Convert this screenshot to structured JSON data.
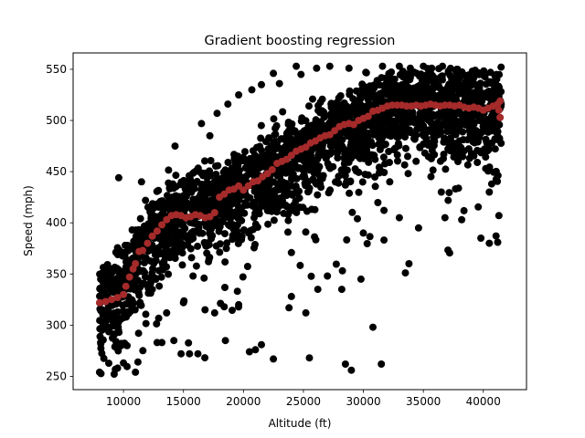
{
  "chart_data": {
    "type": "scatter",
    "title": "Gradient boosting regression",
    "xlabel": "Altitude (ft)",
    "ylabel": "Speed (mph)",
    "xlim": [
      5800,
      43600
    ],
    "ylim": [
      237,
      566
    ],
    "xticks": [
      10000,
      15000,
      20000,
      25000,
      30000,
      35000,
      40000
    ],
    "yticks": [
      250,
      300,
      350,
      400,
      450,
      500,
      550
    ],
    "grid": false,
    "legend": "none",
    "series": [
      {
        "color": "#000000",
        "marker": "circle",
        "cloud": {
          "n": 2600,
          "seed": 7,
          "xrange": [
            8000,
            41500
          ],
          "trend": [
            [
              8000,
              320
            ],
            [
              10000,
              340
            ],
            [
              12000,
              380
            ],
            [
              14000,
              405
            ],
            [
              16000,
              412
            ],
            [
              18000,
              425
            ],
            [
              20000,
              435
            ],
            [
              22000,
              450
            ],
            [
              24000,
              465
            ],
            [
              26000,
              478
            ],
            [
              28000,
              490
            ],
            [
              30000,
              500
            ],
            [
              32000,
              512
            ],
            [
              34000,
              516
            ],
            [
              36000,
              517
            ],
            [
              38000,
              515
            ],
            [
              40000,
              513
            ],
            [
              41500,
              510
            ]
          ],
          "ymax": 553,
          "spread_low": 80,
          "spread_high": 55
        },
        "points": [
          [
            8000,
            254
          ],
          [
            9500,
            258
          ],
          [
            11000,
            254
          ],
          [
            11200,
            264
          ],
          [
            9800,
            280
          ],
          [
            10300,
            280
          ],
          [
            12800,
            283
          ],
          [
            13200,
            283
          ],
          [
            14200,
            285
          ],
          [
            14800,
            272
          ],
          [
            15500,
            272
          ],
          [
            16200,
            272
          ],
          [
            18500,
            285
          ],
          [
            20500,
            274
          ],
          [
            21000,
            276
          ],
          [
            22500,
            267
          ],
          [
            21500,
            281
          ],
          [
            25500,
            268
          ],
          [
            28500,
            262
          ],
          [
            29000,
            256
          ],
          [
            31500,
            262
          ],
          [
            30800,
            298
          ],
          [
            29500,
            404
          ],
          [
            30000,
            390
          ],
          [
            33500,
            351
          ],
          [
            33800,
            360
          ],
          [
            32200,
            440
          ],
          [
            36500,
            430
          ],
          [
            36800,
            405
          ],
          [
            38200,
            403
          ],
          [
            39800,
            385
          ],
          [
            40500,
            380
          ],
          [
            41200,
            381
          ],
          [
            41300,
            407
          ],
          [
            40500,
            430
          ],
          [
            40700,
            438
          ],
          [
            40200,
            453
          ],
          [
            8100,
            345
          ],
          [
            8700,
            353
          ],
          [
            8200,
            295
          ],
          [
            9600,
            444
          ],
          [
            11500,
            440
          ],
          [
            13200,
            417
          ],
          [
            14300,
            475
          ],
          [
            16500,
            497
          ],
          [
            17200,
            485
          ],
          [
            17800,
            507
          ],
          [
            18700,
            516
          ],
          [
            19600,
            525
          ],
          [
            20700,
            530
          ],
          [
            21500,
            535
          ],
          [
            22500,
            546
          ],
          [
            23000,
            536
          ],
          [
            24400,
            553
          ],
          [
            24800,
            545
          ],
          [
            26100,
            551
          ],
          [
            27200,
            553
          ],
          [
            28800,
            551
          ],
          [
            30200,
            547
          ],
          [
            31600,
            553
          ],
          [
            33000,
            553
          ],
          [
            35000,
            553
          ],
          [
            36600,
            553
          ],
          [
            37800,
            550
          ],
          [
            39200,
            548
          ],
          [
            40600,
            547
          ],
          [
            41100,
            545
          ],
          [
            24000,
            328
          ],
          [
            26200,
            335
          ],
          [
            27000,
            348
          ],
          [
            28200,
            335
          ],
          [
            29800,
            345
          ],
          [
            33000,
            405
          ],
          [
            34600,
            395
          ],
          [
            25200,
            312
          ],
          [
            23800,
            317
          ],
          [
            16800,
            315
          ],
          [
            17600,
            312
          ],
          [
            18400,
            318
          ],
          [
            19600,
            320
          ],
          [
            13600,
            312
          ],
          [
            15000,
            322
          ],
          [
            12400,
            335
          ],
          [
            15800,
            348
          ]
        ]
      },
      {
        "color": "#a52a2a",
        "marker": "circle",
        "points": [
          [
            8000,
            322
          ],
          [
            8500,
            323
          ],
          [
            9000,
            325
          ],
          [
            9500,
            327
          ],
          [
            10000,
            330
          ],
          [
            10200,
            338
          ],
          [
            10500,
            347
          ],
          [
            10800,
            355
          ],
          [
            11000,
            360
          ],
          [
            11300,
            372
          ],
          [
            11600,
            373
          ],
          [
            12000,
            380
          ],
          [
            12400,
            387
          ],
          [
            12800,
            392
          ],
          [
            13200,
            398
          ],
          [
            13600,
            403
          ],
          [
            14000,
            407
          ],
          [
            14400,
            408
          ],
          [
            14800,
            407
          ],
          [
            15200,
            405
          ],
          [
            15600,
            406
          ],
          [
            16000,
            408
          ],
          [
            16400,
            407
          ],
          [
            16800,
            405
          ],
          [
            17200,
            406
          ],
          [
            17600,
            410
          ],
          [
            18000,
            425
          ],
          [
            18400,
            428
          ],
          [
            18800,
            432
          ],
          [
            19200,
            433
          ],
          [
            19600,
            436
          ],
          [
            20000,
            432
          ],
          [
            20400,
            436
          ],
          [
            20800,
            440
          ],
          [
            21200,
            441
          ],
          [
            21600,
            445
          ],
          [
            22000,
            448
          ],
          [
            22400,
            452
          ],
          [
            22800,
            458
          ],
          [
            23200,
            460
          ],
          [
            23600,
            462
          ],
          [
            24000,
            466
          ],
          [
            24400,
            470
          ],
          [
            24800,
            472
          ],
          [
            25200,
            474
          ],
          [
            25600,
            478
          ],
          [
            26000,
            480
          ],
          [
            26400,
            483
          ],
          [
            26800,
            485
          ],
          [
            27200,
            486
          ],
          [
            27600,
            490
          ],
          [
            28000,
            494
          ],
          [
            28400,
            496
          ],
          [
            28800,
            497
          ],
          [
            29200,
            496
          ],
          [
            29600,
            500
          ],
          [
            30000,
            502
          ],
          [
            30400,
            504
          ],
          [
            30800,
            509
          ],
          [
            31200,
            510
          ],
          [
            31600,
            512
          ],
          [
            32000,
            514
          ],
          [
            32400,
            515
          ],
          [
            32800,
            515
          ],
          [
            33200,
            515
          ],
          [
            33600,
            514
          ],
          [
            34000,
            514
          ],
          [
            34400,
            515
          ],
          [
            34800,
            514
          ],
          [
            35200,
            515
          ],
          [
            35600,
            516
          ],
          [
            36000,
            515
          ],
          [
            36400,
            514
          ],
          [
            36800,
            515
          ],
          [
            37200,
            515
          ],
          [
            37600,
            514
          ],
          [
            38000,
            515
          ],
          [
            38400,
            513
          ],
          [
            38800,
            512
          ],
          [
            39200,
            513
          ],
          [
            39600,
            512
          ],
          [
            40000,
            510
          ],
          [
            40400,
            512
          ],
          [
            40800,
            514
          ],
          [
            41200,
            516
          ],
          [
            41300,
            510
          ],
          [
            41400,
            503
          ],
          [
            41400,
            519
          ]
        ]
      }
    ]
  }
}
